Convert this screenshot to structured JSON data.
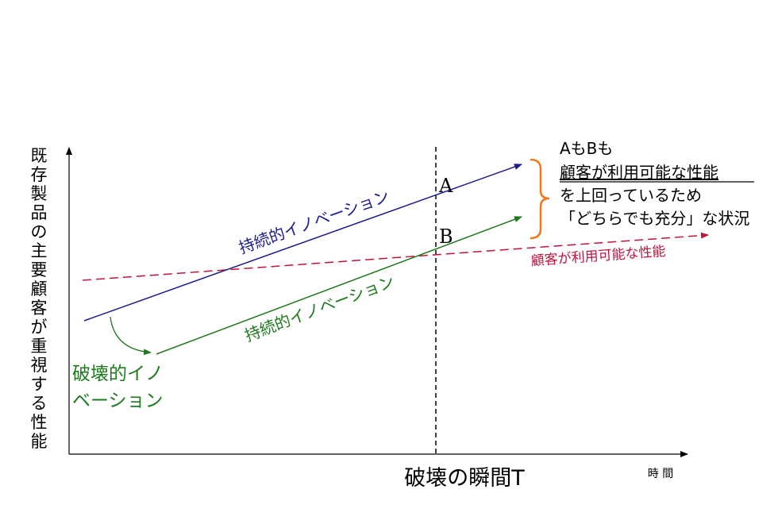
{
  "axes": {
    "y_label_chars": [
      "既",
      "存",
      "製",
      "品",
      "の",
      "主",
      "要",
      "顧",
      "客",
      "が",
      "重",
      "視",
      "す",
      "る",
      "性",
      "能"
    ],
    "x_label": "時 間"
  },
  "lines": {
    "upper_sustaining": {
      "label": "持続的イノベーション",
      "color": "#1c1c8c"
    },
    "lower_sustaining": {
      "label": "持続的イノベーション",
      "color": "#1f7a1f"
    },
    "customer_performance": {
      "label": "顧客が利用可能な性能",
      "color": "#c0143c"
    }
  },
  "disruptive_label": {
    "line1": "破壊的イノ",
    "line2": "ベーション",
    "color": "#1f7a1f"
  },
  "points": {
    "a": "A",
    "b": "B"
  },
  "moment_label": "破壊の瞬間T",
  "bracket_color": "#f07820",
  "note": {
    "line1": "AもBも",
    "line2": "顧客が利用可能な性能",
    "line3": "を上回っているため",
    "line4": "「どちらでも充分」な状況"
  }
}
